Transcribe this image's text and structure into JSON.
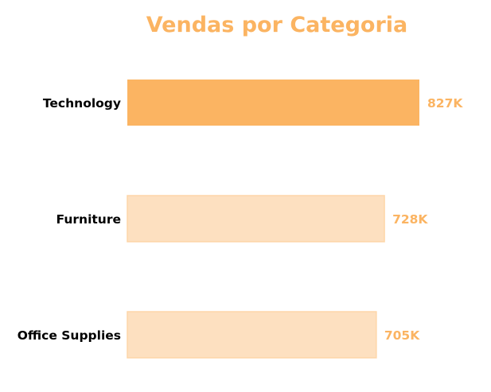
{
  "chart_data": {
    "type": "bar",
    "orientation": "horizontal",
    "title": "Vendas por Categoria",
    "categories": [
      "Technology",
      "Furniture",
      "Office Supplies"
    ],
    "values": [
      827,
      728,
      705
    ],
    "value_labels": [
      "827K",
      "728K",
      "705K"
    ],
    "unit": "K",
    "xlim": [
      0,
      827
    ],
    "xlabel": "",
    "ylabel": "",
    "grid": false,
    "legend": false,
    "highlight_index": 0
  },
  "colors": {
    "title": "#fbb462",
    "highlight_bar": "#fbb462",
    "bar": "#fde0c0",
    "bar_edge": "#fdd6a9",
    "value_label": "#fbb462",
    "category_label": "#000000"
  }
}
